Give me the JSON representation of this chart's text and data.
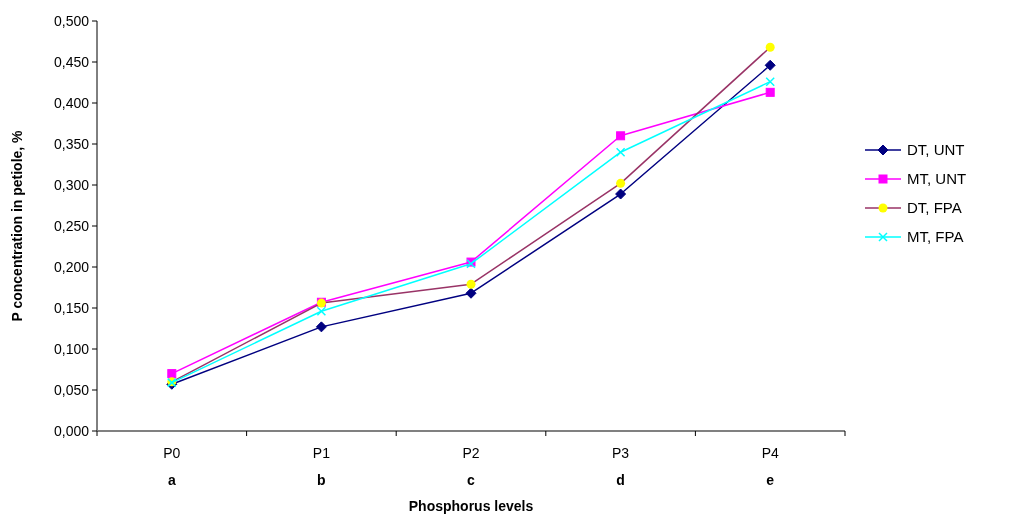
{
  "chart_data": {
    "type": "line",
    "xlabel": "Phosphorus levels",
    "ylabel": "P concentration in petiole, %",
    "categories": [
      "P0",
      "P1",
      "P2",
      "P3",
      "P4"
    ],
    "series": [
      {
        "name": "DT, UNT",
        "color": "#000080",
        "marker": "diamond",
        "values": [
          0.057,
          0.127,
          0.168,
          0.289,
          0.446
        ]
      },
      {
        "name": "MT, UNT",
        "color": "#ff00ff",
        "marker": "square",
        "values": [
          0.07,
          0.157,
          0.206,
          0.36,
          0.413
        ]
      },
      {
        "name": "DT, FPA",
        "color": "#993366",
        "colors": [
          "#ffff00",
          "#ffff00",
          "#ffff00",
          "#ffff00",
          "#ffff00"
        ],
        "marker": "circle",
        "values": [
          0.06,
          0.156,
          0.179,
          0.302,
          0.468
        ]
      },
      {
        "name": "MT, FPA",
        "color": "#00ffff",
        "marker": "cross",
        "values": [
          0.059,
          0.146,
          0.204,
          0.34,
          0.426
        ]
      }
    ],
    "ylim": [
      0,
      0.5
    ],
    "yticks": [
      {
        "value": 0,
        "label": "0,000"
      },
      {
        "value": 0.05,
        "label": "0,050"
      },
      {
        "value": 0.1,
        "label": "0,100"
      },
      {
        "value": 0.15,
        "label": "0,150"
      },
      {
        "value": 0.2,
        "label": "0,200"
      },
      {
        "value": 0.25,
        "label": "0,250"
      },
      {
        "value": 0.3,
        "label": "0,300"
      },
      {
        "value": 0.35,
        "label": "0,350"
      },
      {
        "value": 0.4,
        "label": "0,400"
      },
      {
        "value": 0.45,
        "label": "0,450"
      },
      {
        "value": 0.5,
        "label": "0,500"
      }
    ],
    "annotations": [
      "a",
      "b",
      "c",
      "d",
      "e"
    ],
    "legend": "right",
    "grid": false,
    "line_style": "solid"
  }
}
